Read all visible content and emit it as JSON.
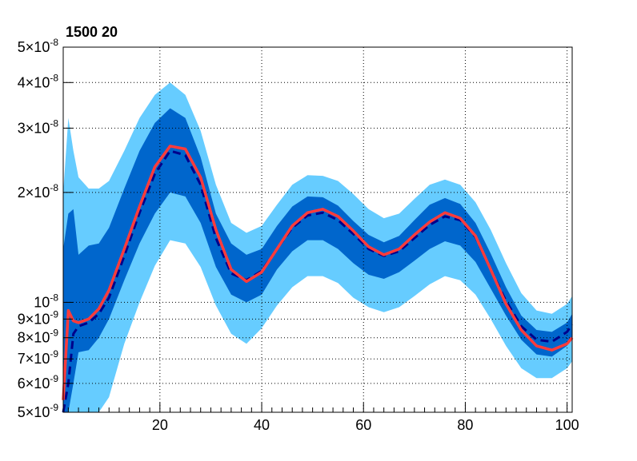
{
  "chart_data": {
    "type": "line",
    "title": "1500 20",
    "xlabel": "",
    "ylabel": "",
    "xlim": [
      1,
      101
    ],
    "ylim": [
      5e-09,
      5e-08
    ],
    "y_scale": "log",
    "grid": true,
    "x_ticks": [
      {
        "value": 20,
        "label": "20"
      },
      {
        "value": 40,
        "label": "40"
      },
      {
        "value": 60,
        "label": "60"
      },
      {
        "value": 80,
        "label": "80"
      },
      {
        "value": 100,
        "label": "100"
      }
    ],
    "y_ticks": [
      {
        "value": 5e-09,
        "mant": "5",
        "exp": "-9"
      },
      {
        "value": 6e-09,
        "mant": "6",
        "exp": "-9"
      },
      {
        "value": 7e-09,
        "mant": "7",
        "exp": "-9"
      },
      {
        "value": 8e-09,
        "mant": "8",
        "exp": "-9"
      },
      {
        "value": 9e-09,
        "mant": "9",
        "exp": "-9"
      },
      {
        "value": 1e-08,
        "mant": "",
        "exp": "-8"
      },
      {
        "value": 2e-08,
        "mant": "2",
        "exp": "-8"
      },
      {
        "value": 3e-08,
        "mant": "3",
        "exp": "-8"
      },
      {
        "value": 4e-08,
        "mant": "4",
        "exp": "-8"
      },
      {
        "value": 5e-08,
        "mant": "5",
        "exp": "-8"
      }
    ],
    "x": [
      1,
      2,
      3,
      4,
      6,
      8,
      10,
      13,
      16,
      19,
      22,
      25,
      28,
      31,
      34,
      37,
      40,
      43,
      46,
      49,
      52,
      55,
      58,
      61,
      64,
      67,
      70,
      73,
      76,
      79,
      82,
      85,
      88,
      91,
      94,
      97,
      100,
      101
    ],
    "series": [
      {
        "role": "band-2sigma",
        "color": "#66ccff",
        "low": [
          4.5e-09,
          4.6e-09,
          4.7e-09,
          4.8e-09,
          4.9e-09,
          4.95e-09,
          5.5e-09,
          7.7e-09,
          1e-08,
          1.26e-08,
          1.48e-08,
          1.45e-08,
          1.25e-08,
          9.8e-09,
          8.2e-09,
          7.7e-09,
          8.5e-09,
          9.8e-09,
          1.1e-08,
          1.18e-08,
          1.18e-08,
          1.13e-08,
          1.03e-08,
          9.7e-09,
          9.4e-09,
          9.7e-09,
          1.04e-08,
          1.12e-08,
          1.18e-08,
          1.15e-08,
          1.05e-08,
          9e-09,
          7.6e-09,
          6.6e-09,
          6.2e-09,
          6.2e-09,
          6.6e-09,
          6.9e-09
        ],
        "high": [
          2e-08,
          3.2e-08,
          2.6e-08,
          2.2e-08,
          2.05e-08,
          2.05e-08,
          2.15e-08,
          2.6e-08,
          3.2e-08,
          3.7e-08,
          4e-08,
          3.7e-08,
          2.95e-08,
          2.1e-08,
          1.65e-08,
          1.55e-08,
          1.62e-08,
          1.85e-08,
          2.1e-08,
          2.23e-08,
          2.22e-08,
          2.15e-08,
          1.98e-08,
          1.8e-08,
          1.7e-08,
          1.75e-08,
          1.92e-08,
          2.1e-08,
          2.17e-08,
          2.1e-08,
          1.88e-08,
          1.58e-08,
          1.28e-08,
          1.06e-08,
          9.5e-09,
          9.3e-09,
          9.9e-09,
          1.04e-08
        ]
      },
      {
        "role": "band-1sigma",
        "color": "#0066cc",
        "low": [
          4.8e-09,
          5e-09,
          6e-09,
          7.3e-09,
          7.4e-09,
          8e-09,
          9e-09,
          1.15e-08,
          1.45e-08,
          1.75e-08,
          2e-08,
          1.95e-08,
          1.65e-08,
          1.25e-08,
          1.05e-08,
          1e-08,
          1.05e-08,
          1.23e-08,
          1.38e-08,
          1.48e-08,
          1.48e-08,
          1.4e-08,
          1.28e-08,
          1.19e-08,
          1.16e-08,
          1.21e-08,
          1.3e-08,
          1.4e-08,
          1.47e-08,
          1.43e-08,
          1.29e-08,
          1.09e-08,
          9.2e-09,
          7.9e-09,
          7.2e-09,
          7.1e-09,
          7.6e-09,
          8e-09
        ],
        "high": [
          1.4e-08,
          1.75e-08,
          1.8e-08,
          1.35e-08,
          1.43e-08,
          1.45e-08,
          1.6e-08,
          2.05e-08,
          2.6e-08,
          3.1e-08,
          3.4e-08,
          3.2e-08,
          2.5e-08,
          1.75e-08,
          1.45e-08,
          1.35e-08,
          1.4e-08,
          1.62e-08,
          1.83e-08,
          1.95e-08,
          1.94e-08,
          1.84e-08,
          1.67e-08,
          1.53e-08,
          1.46e-08,
          1.52e-08,
          1.68e-08,
          1.85e-08,
          1.93e-08,
          1.86e-08,
          1.65e-08,
          1.36e-08,
          1.1e-08,
          9.2e-09,
          8.4e-09,
          8.3e-09,
          8.8e-09,
          9.3e-09
        ]
      },
      {
        "role": "expected",
        "color": "#00008b",
        "dash": true,
        "values": [
          4.3e-09,
          6e-09,
          8.2e-09,
          8.6e-09,
          8.8e-09,
          9.3e-09,
          1.03e-08,
          1.34e-08,
          1.76e-08,
          2.25e-08,
          2.6e-08,
          2.53e-08,
          2.1e-08,
          1.5e-08,
          1.2e-08,
          1.15e-08,
          1.22e-08,
          1.4e-08,
          1.6e-08,
          1.73e-08,
          1.76e-08,
          1.68e-08,
          1.54e-08,
          1.4e-08,
          1.34e-08,
          1.38e-08,
          1.5e-08,
          1.63e-08,
          1.72e-08,
          1.68e-08,
          1.51e-08,
          1.23e-08,
          1.01e-08,
          8.6e-09,
          7.9e-09,
          7.8e-09,
          8.3e-09,
          8.7e-09
        ]
      },
      {
        "role": "observed",
        "color": "#ff3b3b",
        "dash": false,
        "values": [
          5.4e-09,
          9.5e-09,
          8.9e-09,
          8.8e-09,
          9e-09,
          9.6e-09,
          1.08e-08,
          1.4e-08,
          1.83e-08,
          2.35e-08,
          2.68e-08,
          2.63e-08,
          2.2e-08,
          1.58e-08,
          1.23e-08,
          1.14e-08,
          1.21e-08,
          1.4e-08,
          1.62e-08,
          1.76e-08,
          1.8e-08,
          1.72e-08,
          1.57e-08,
          1.42e-08,
          1.35e-08,
          1.4e-08,
          1.53e-08,
          1.66e-08,
          1.76e-08,
          1.7e-08,
          1.52e-08,
          1.23e-08,
          9.9e-09,
          8.4e-09,
          7.6e-09,
          7.4e-09,
          7.7e-09,
          8e-09
        ]
      }
    ]
  }
}
